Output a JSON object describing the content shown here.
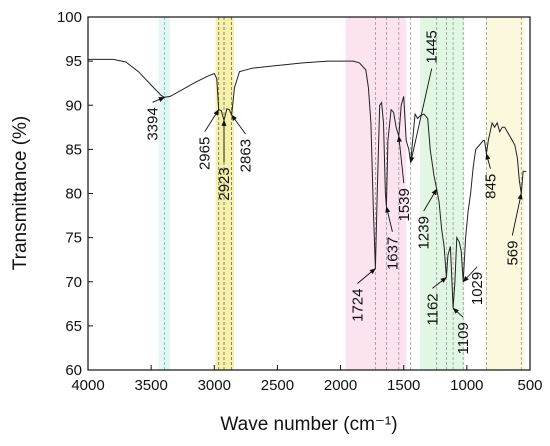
{
  "chart_data": {
    "type": "line",
    "xlabel": "Wave number (cm⁻¹)",
    "ylabel": "Transmittance (%)",
    "xlim": [
      4000,
      500
    ],
    "ylim": [
      60,
      100
    ],
    "xticks": [
      4000,
      3500,
      3000,
      2500,
      2000,
      1500,
      1000,
      500
    ],
    "yticks": [
      60,
      65,
      70,
      75,
      80,
      85,
      90,
      95,
      100
    ],
    "color": "#222222",
    "bands": [
      {
        "x": [
          3440,
          3350
        ],
        "color": "#e3f6f4"
      },
      {
        "x": [
          2990,
          2845
        ],
        "color": "#f6f0a8"
      },
      {
        "x": [
          1960,
          1480
        ],
        "color": "#fbe3ef"
      },
      {
        "x": [
          1370,
          1020
        ],
        "color": "#e2f6e4"
      },
      {
        "x": [
          850,
          540
        ],
        "color": "#fbf8de"
      }
    ],
    "x": [
      4000,
      3800,
      3700,
      3600,
      3500,
      3420,
      3394,
      3350,
      3250,
      3150,
      3050,
      3000,
      2980,
      2965,
      2945,
      2923,
      2900,
      2880,
      2863,
      2840,
      2800,
      2700,
      2500,
      2300,
      2100,
      2000,
      1900,
      1850,
      1800,
      1780,
      1760,
      1740,
      1724,
      1710,
      1690,
      1675,
      1660,
      1645,
      1637,
      1625,
      1600,
      1580,
      1560,
      1539,
      1520,
      1500,
      1480,
      1460,
      1445,
      1430,
      1410,
      1390,
      1370,
      1340,
      1310,
      1290,
      1260,
      1239,
      1220,
      1200,
      1180,
      1162,
      1150,
      1130,
      1109,
      1095,
      1080,
      1060,
      1045,
      1029,
      1010,
      990,
      970,
      950,
      930,
      900,
      870,
      860,
      845,
      830,
      800,
      780,
      760,
      740,
      720,
      700,
      680,
      660,
      640,
      620,
      600,
      585,
      569,
      555,
      530
    ],
    "values": [
      95.2,
      95.2,
      94.9,
      93.8,
      92.3,
      91.1,
      90.9,
      91.0,
      91.8,
      92.6,
      93.3,
      93.6,
      93.0,
      89.5,
      89.4,
      88.3,
      89.6,
      89.5,
      88.9,
      92.0,
      93.8,
      94.2,
      94.5,
      94.8,
      95.0,
      95.0,
      95.0,
      94.8,
      94.0,
      92.0,
      88.0,
      78.0,
      71.5,
      80.0,
      90.0,
      90.3,
      88.0,
      80.0,
      78.5,
      86.0,
      89.5,
      89.2,
      87.5,
      86.5,
      90.0,
      91.0,
      86.0,
      85.0,
      83.5,
      86.0,
      89.0,
      88.5,
      88.8,
      89.0,
      88.5,
      85.0,
      82.0,
      80.5,
      79.0,
      76.0,
      74.0,
      70.5,
      73.0,
      74.0,
      67.0,
      70.0,
      75.0,
      74.5,
      73.5,
      70.0,
      75.0,
      78.0,
      80.0,
      83.0,
      85.0,
      85.5,
      86.0,
      86.0,
      84.5,
      86.0,
      88.0,
      87.5,
      88.0,
      87.0,
      87.5,
      87.5,
      87.0,
      86.5,
      86.0,
      85.5,
      84.0,
      81.5,
      80.0,
      82.5,
      82.5
    ],
    "annotations": [
      {
        "x": 3394,
        "y": 90.9
      },
      {
        "x": 2965,
        "y": 89.5
      },
      {
        "x": 2923,
        "y": 88.3
      },
      {
        "x": 2863,
        "y": 88.9
      },
      {
        "x": 1724,
        "y": 71.5
      },
      {
        "x": 1637,
        "y": 78.5
      },
      {
        "x": 1539,
        "y": 86.5
      },
      {
        "x": 1445,
        "y": 83.5
      },
      {
        "x": 1239,
        "y": 80.5
      },
      {
        "x": 1162,
        "y": 70.5
      },
      {
        "x": 1109,
        "y": 67.0
      },
      {
        "x": 1029,
        "y": 70.0
      },
      {
        "x": 845,
        "y": 84.5
      },
      {
        "x": 569,
        "y": 80.0
      }
    ]
  }
}
